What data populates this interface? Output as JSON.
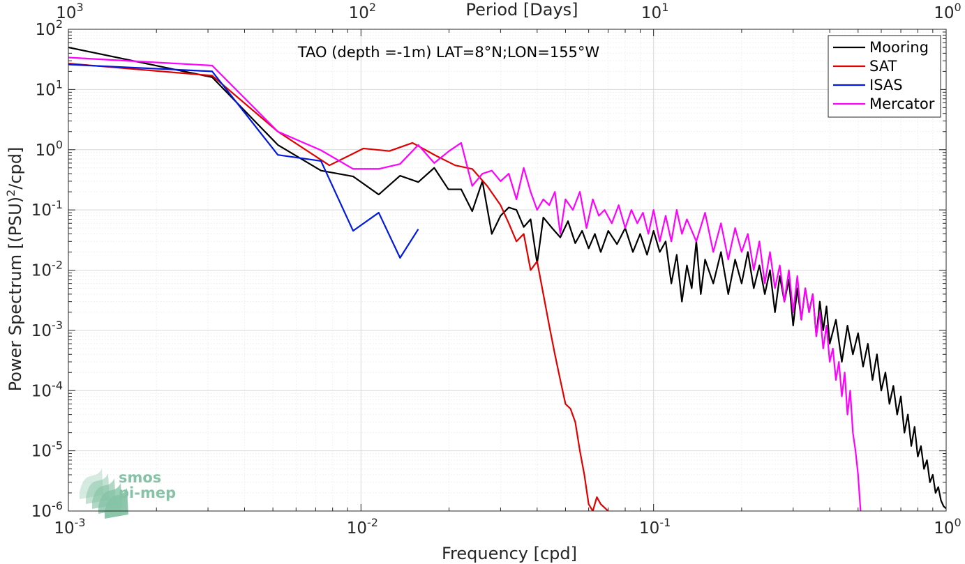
{
  "chart_data": {
    "type": "line",
    "title": "",
    "annotation": "TAO (depth =-1m) LAT=8°N;LON=155°W",
    "xlabel": "Frequency [cpd]",
    "ylabel_main": "Power Spectrum [(PSU)",
    "ylabel_sup": "2",
    "ylabel_tail": "/cpd]",
    "top_xlabel": "Period [Days]",
    "xscale": "log",
    "yscale": "log",
    "xlim": [
      0.001,
      1
    ],
    "ylim": [
      1e-06,
      100
    ],
    "grid": true,
    "legend_position": "top-right",
    "x_ticks": [
      {
        "v": 0.001,
        "base": "10",
        "exp": "-3"
      },
      {
        "v": 0.01,
        "base": "10",
        "exp": "-2"
      },
      {
        "v": 0.1,
        "base": "10",
        "exp": "-1"
      },
      {
        "v": 1,
        "base": "10",
        "exp": "0"
      }
    ],
    "top_ticks": [
      {
        "v": 0.001,
        "base": "10",
        "exp": "3"
      },
      {
        "v": 0.01,
        "base": "10",
        "exp": "2"
      },
      {
        "v": 0.1,
        "base": "10",
        "exp": "1"
      },
      {
        "v": 1,
        "base": "10",
        "exp": "0"
      }
    ],
    "y_ticks": [
      {
        "v": 1e-06,
        "base": "10",
        "exp": "-6"
      },
      {
        "v": 1e-05,
        "base": "10",
        "exp": "-5"
      },
      {
        "v": 0.0001,
        "base": "10",
        "exp": "-4"
      },
      {
        "v": 0.001,
        "base": "10",
        "exp": "-3"
      },
      {
        "v": 0.01,
        "base": "10",
        "exp": "-2"
      },
      {
        "v": 0.1,
        "base": "10",
        "exp": "-1"
      },
      {
        "v": 1,
        "base": "10",
        "exp": "0"
      },
      {
        "v": 10,
        "base": "10",
        "exp": "1"
      },
      {
        "v": 100,
        "base": "10",
        "exp": "2"
      }
    ],
    "series": [
      {
        "name": "Mooring",
        "color": "#000000",
        "points": [
          [
            0.001,
            50
          ],
          [
            0.0031,
            16
          ],
          [
            0.0052,
            1.2
          ],
          [
            0.0073,
            0.45
          ],
          [
            0.0094,
            0.36
          ],
          [
            0.0115,
            0.18
          ],
          [
            0.0136,
            0.37
          ],
          [
            0.0157,
            0.29
          ],
          [
            0.0178,
            0.5
          ],
          [
            0.0199,
            0.22
          ],
          [
            0.022,
            0.22
          ],
          [
            0.024,
            0.095
          ],
          [
            0.026,
            0.3
          ],
          [
            0.028,
            0.04
          ],
          [
            0.03,
            0.08
          ],
          [
            0.032,
            0.11
          ],
          [
            0.034,
            0.1
          ],
          [
            0.036,
            0.052
          ],
          [
            0.038,
            0.07
          ],
          [
            0.04,
            0.013
          ],
          [
            0.042,
            0.075
          ],
          [
            0.045,
            0.05
          ],
          [
            0.048,
            0.035
          ],
          [
            0.051,
            0.065
          ],
          [
            0.054,
            0.028
          ],
          [
            0.057,
            0.045
          ],
          [
            0.06,
            0.023
          ],
          [
            0.063,
            0.04
          ],
          [
            0.066,
            0.02
          ],
          [
            0.07,
            0.045
          ],
          [
            0.075,
            0.027
          ],
          [
            0.08,
            0.05
          ],
          [
            0.085,
            0.02
          ],
          [
            0.09,
            0.04
          ],
          [
            0.095,
            0.018
          ],
          [
            0.1,
            0.045
          ],
          [
            0.105,
            0.02
          ],
          [
            0.11,
            0.03
          ],
          [
            0.115,
            0.006
          ],
          [
            0.12,
            0.018
          ],
          [
            0.125,
            0.003
          ],
          [
            0.13,
            0.012
          ],
          [
            0.135,
            0.005
          ],
          [
            0.14,
            0.03
          ],
          [
            0.145,
            0.004
          ],
          [
            0.15,
            0.015
          ],
          [
            0.16,
            0.006
          ],
          [
            0.17,
            0.02
          ],
          [
            0.18,
            0.004
          ],
          [
            0.19,
            0.015
          ],
          [
            0.2,
            0.006
          ],
          [
            0.21,
            0.02
          ],
          [
            0.22,
            0.005
          ],
          [
            0.23,
            0.012
          ],
          [
            0.24,
            0.004
          ],
          [
            0.25,
            0.01
          ],
          [
            0.26,
            0.002
          ],
          [
            0.27,
            0.008
          ],
          [
            0.28,
            0.003
          ],
          [
            0.29,
            0.007
          ],
          [
            0.3,
            0.0012
          ],
          [
            0.31,
            0.005
          ],
          [
            0.32,
            0.0015
          ],
          [
            0.33,
            0.005
          ],
          [
            0.34,
            0.002
          ],
          [
            0.35,
            0.004
          ],
          [
            0.36,
            0.0008
          ],
          [
            0.37,
            0.003
          ],
          [
            0.38,
            0.001
          ],
          [
            0.39,
            0.0025
          ],
          [
            0.4,
            0.0006
          ],
          [
            0.42,
            0.0015
          ],
          [
            0.44,
            0.0003
          ],
          [
            0.46,
            0.0012
          ],
          [
            0.48,
            0.0004
          ],
          [
            0.5,
            0.0009
          ],
          [
            0.52,
            0.00025
          ],
          [
            0.54,
            0.0006
          ],
          [
            0.56,
            0.00015
          ],
          [
            0.58,
            0.0004
          ],
          [
            0.6,
            0.0001
          ],
          [
            0.62,
            0.0002
          ],
          [
            0.64,
            6e-05
          ],
          [
            0.66,
            0.00012
          ],
          [
            0.68,
            4e-05
          ],
          [
            0.7,
            8e-05
          ],
          [
            0.72,
            2e-05
          ],
          [
            0.74,
            4e-05
          ],
          [
            0.76,
            1.2e-05
          ],
          [
            0.78,
            2.5e-05
          ],
          [
            0.8,
            8e-06
          ],
          [
            0.82,
            1.2e-05
          ],
          [
            0.84,
            5e-06
          ],
          [
            0.86,
            7e-06
          ],
          [
            0.88,
            3e-06
          ],
          [
            0.9,
            4e-06
          ],
          [
            0.92,
            2e-06
          ],
          [
            0.94,
            2.5e-06
          ],
          [
            0.96,
            1.5e-06
          ],
          [
            0.98,
            1.2e-06
          ],
          [
            1.0,
            1.1e-06
          ]
        ]
      },
      {
        "name": "SAT",
        "color": "#e00000",
        "points": [
          [
            0.001,
            27
          ],
          [
            0.0031,
            17
          ],
          [
            0.0052,
            2
          ],
          [
            0.0078,
            0.55
          ],
          [
            0.0102,
            1.05
          ],
          [
            0.0125,
            0.95
          ],
          [
            0.015,
            1.3
          ],
          [
            0.018,
            0.8
          ],
          [
            0.021,
            0.55
          ],
          [
            0.024,
            0.48
          ],
          [
            0.027,
            0.25
          ],
          [
            0.03,
            0.12
          ],
          [
            0.032,
            0.06
          ],
          [
            0.034,
            0.03
          ],
          [
            0.036,
            0.04
          ],
          [
            0.038,
            0.01
          ],
          [
            0.04,
            0.014
          ],
          [
            0.042,
            0.004
          ],
          [
            0.044,
            0.0012
          ],
          [
            0.046,
            0.0004
          ],
          [
            0.048,
            0.00015
          ],
          [
            0.05,
            6e-05
          ],
          [
            0.052,
            5e-05
          ],
          [
            0.054,
            3e-05
          ],
          [
            0.056,
            1e-05
          ],
          [
            0.058,
            4e-06
          ],
          [
            0.06,
            1.3e-06
          ],
          [
            0.062,
            1e-06
          ],
          [
            0.064,
            1.7e-06
          ],
          [
            0.066,
            1.3e-06
          ],
          [
            0.07,
            1e-06
          ]
        ]
      },
      {
        "name": "ISAS",
        "color": "#0018e0",
        "points": [
          [
            0.001,
            26
          ],
          [
            0.0031,
            20
          ],
          [
            0.0052,
            0.82
          ],
          [
            0.0073,
            0.65
          ],
          [
            0.0094,
            0.045
          ],
          [
            0.0115,
            0.09
          ],
          [
            0.0136,
            0.016
          ],
          [
            0.0157,
            0.048
          ]
        ]
      },
      {
        "name": "Mercator",
        "color": "#ff00ff",
        "points": [
          [
            0.001,
            34
          ],
          [
            0.0031,
            25
          ],
          [
            0.0052,
            2
          ],
          [
            0.0073,
            0.98
          ],
          [
            0.0094,
            0.48
          ],
          [
            0.0115,
            0.48
          ],
          [
            0.0136,
            0.58
          ],
          [
            0.0157,
            1.2
          ],
          [
            0.0178,
            0.6
          ],
          [
            0.02,
            0.95
          ],
          [
            0.022,
            1.3
          ],
          [
            0.024,
            0.25
          ],
          [
            0.026,
            0.4
          ],
          [
            0.028,
            0.45
          ],
          [
            0.03,
            0.3
          ],
          [
            0.032,
            0.4
          ],
          [
            0.034,
            0.15
          ],
          [
            0.036,
            0.5
          ],
          [
            0.038,
            0.2
          ],
          [
            0.04,
            0.1
          ],
          [
            0.042,
            0.15
          ],
          [
            0.044,
            0.12
          ],
          [
            0.046,
            0.2
          ],
          [
            0.048,
            0.04
          ],
          [
            0.05,
            0.15
          ],
          [
            0.053,
            0.1
          ],
          [
            0.056,
            0.2
          ],
          [
            0.059,
            0.05
          ],
          [
            0.062,
            0.15
          ],
          [
            0.065,
            0.08
          ],
          [
            0.068,
            0.1
          ],
          [
            0.072,
            0.06
          ],
          [
            0.076,
            0.12
          ],
          [
            0.08,
            0.05
          ],
          [
            0.084,
            0.1
          ],
          [
            0.088,
            0.06
          ],
          [
            0.092,
            0.09
          ],
          [
            0.096,
            0.04
          ],
          [
            0.1,
            0.1
          ],
          [
            0.105,
            0.03
          ],
          [
            0.11,
            0.08
          ],
          [
            0.115,
            0.03
          ],
          [
            0.12,
            0.1
          ],
          [
            0.125,
            0.04
          ],
          [
            0.13,
            0.07
          ],
          [
            0.14,
            0.03
          ],
          [
            0.15,
            0.09
          ],
          [
            0.16,
            0.02
          ],
          [
            0.17,
            0.06
          ],
          [
            0.18,
            0.015
          ],
          [
            0.19,
            0.05
          ],
          [
            0.2,
            0.02
          ],
          [
            0.21,
            0.04
          ],
          [
            0.22,
            0.01
          ],
          [
            0.23,
            0.03
          ],
          [
            0.24,
            0.006
          ],
          [
            0.25,
            0.02
          ],
          [
            0.26,
            0.005
          ],
          [
            0.27,
            0.012
          ],
          [
            0.28,
            0.003
          ],
          [
            0.29,
            0.01
          ],
          [
            0.3,
            0.002
          ],
          [
            0.31,
            0.008
          ],
          [
            0.32,
            0.0015
          ],
          [
            0.33,
            0.005
          ],
          [
            0.34,
            0.002
          ],
          [
            0.35,
            0.004
          ],
          [
            0.36,
            0.0008
          ],
          [
            0.37,
            0.002
          ],
          [
            0.38,
            0.0005
          ],
          [
            0.39,
            0.0012
          ],
          [
            0.4,
            0.0003
          ],
          [
            0.41,
            0.0005
          ],
          [
            0.42,
            0.00015
          ],
          [
            0.43,
            0.0003
          ],
          [
            0.44,
            8e-05
          ],
          [
            0.45,
            0.0002
          ],
          [
            0.46,
            4e-05
          ],
          [
            0.47,
            0.0001
          ],
          [
            0.48,
            2e-05
          ],
          [
            0.49,
            1e-05
          ],
          [
            0.5,
            4e-06
          ],
          [
            0.51,
            1e-06
          ]
        ]
      }
    ]
  },
  "watermark": {
    "line1": "smos",
    "line2": "pi-mep",
    "color": "#86c3a6"
  }
}
